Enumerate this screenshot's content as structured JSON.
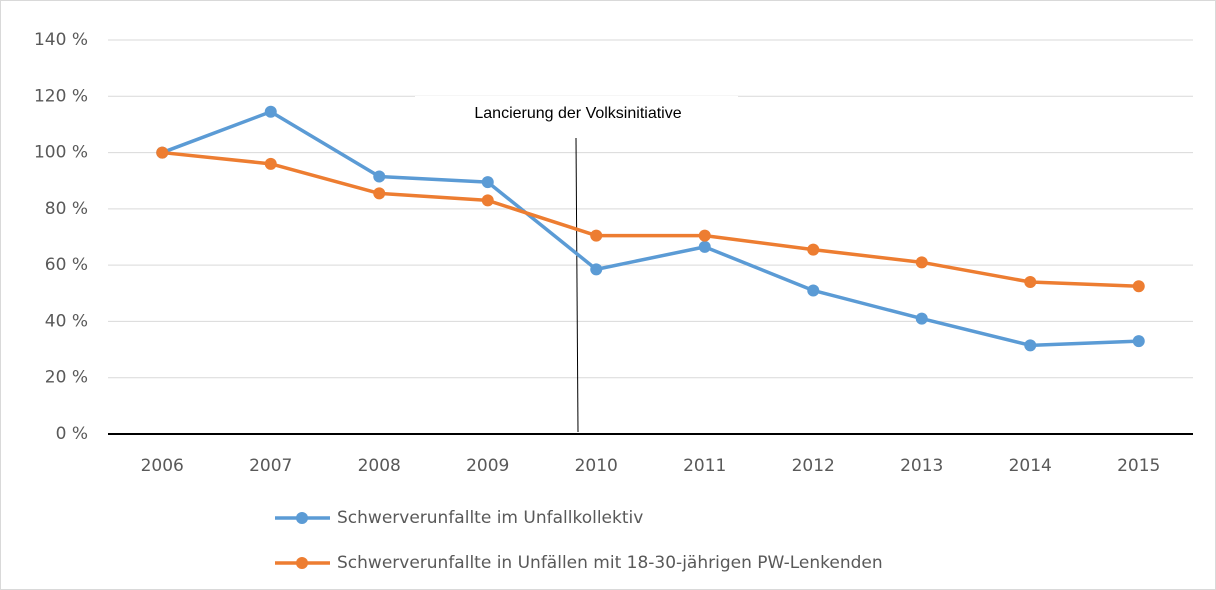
{
  "chart_data": {
    "type": "line",
    "categories": [
      "2006",
      "2007",
      "2008",
      "2009",
      "2010",
      "2011",
      "2012",
      "2013",
      "2014",
      "2015"
    ],
    "series": [
      {
        "name": "Schwerverunfallte im Unfallkollektiv",
        "color": "#5b9bd5",
        "values": [
          100,
          114.5,
          91.5,
          89.5,
          58.5,
          66.5,
          51,
          41,
          31.5,
          33
        ]
      },
      {
        "name": "Schwerverunfallte in Unfällen mit 18-30-jährigen PW-Lenkenden",
        "color": "#ed7d31",
        "values": [
          100,
          96,
          85.5,
          83,
          70.5,
          70.5,
          65.5,
          61,
          54,
          52.5
        ]
      }
    ],
    "ylim": [
      0,
      140
    ],
    "yticks": [
      {
        "value": 0,
        "label": "0 %"
      },
      {
        "value": 20,
        "label": "20 %"
      },
      {
        "value": 40,
        "label": "40 %"
      },
      {
        "value": 60,
        "label": "60 %"
      },
      {
        "value": 80,
        "label": "80 %"
      },
      {
        "value": 100,
        "label": "100 %"
      },
      {
        "value": 120,
        "label": "120 %"
      },
      {
        "value": 140,
        "label": "140 %"
      }
    ],
    "grid": true,
    "annotation": "Lancierung der Volksinitiative"
  }
}
